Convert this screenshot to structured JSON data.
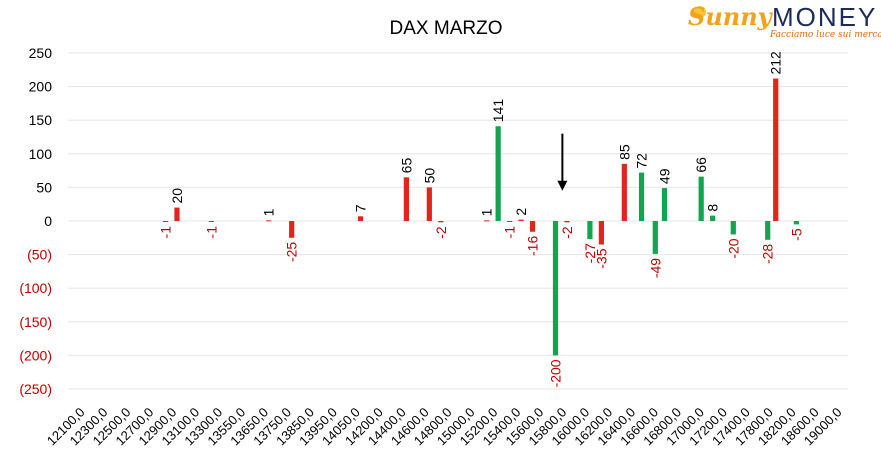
{
  "chart_data": {
    "type": "bar",
    "title": "DAX MARZO",
    "xlabel": "",
    "ylabel": "",
    "ylim": [
      -250,
      250
    ],
    "yticks": [
      250,
      200,
      150,
      100,
      50,
      0,
      -50,
      -100,
      -150,
      -200,
      -250
    ],
    "ytick_labels": [
      "250",
      "200",
      "150",
      "100",
      "50",
      "0",
      "(50)",
      "(100)",
      "(150)",
      "(200)",
      "(250)"
    ],
    "positive_tick_color": "#000000",
    "negative_tick_color": "#c00000",
    "grid": true,
    "legend": "none",
    "categories": [
      "12100,0",
      "12300,0",
      "12500,0",
      "12700,0",
      "12900,0",
      "13100,0",
      "13300,0",
      "13550,0",
      "13650,0",
      "13750,0",
      "13850,0",
      "13950,0",
      "14050,0",
      "14200,0",
      "14400,0",
      "14600,0",
      "14800,0",
      "15000,0",
      "15200,0",
      "15400,0",
      "15600,0",
      "15800,0",
      "16000,0",
      "16200,0",
      "16400,0",
      "16600,0",
      "16800,0",
      "17000,0",
      "17200,0",
      "17400,0",
      "17800,0",
      "18200,0",
      "18600,0",
      "19000,0"
    ],
    "bars": [
      {
        "slot": 4.25,
        "value": -1,
        "color": "red",
        "label": "-1"
      },
      {
        "slot": 4.75,
        "value": 20,
        "color": "red",
        "label": "20"
      },
      {
        "slot": 6.25,
        "value": -1,
        "color": "red",
        "label": "-1"
      },
      {
        "slot": 8.75,
        "value": 1,
        "color": "red",
        "label": "1"
      },
      {
        "slot": 9.75,
        "value": -25,
        "color": "red",
        "label": "-25"
      },
      {
        "slot": 12.75,
        "value": 7,
        "color": "red",
        "label": "7"
      },
      {
        "slot": 14.75,
        "value": 65,
        "color": "red",
        "label": "65"
      },
      {
        "slot": 15.75,
        "value": 50,
        "color": "red",
        "label": "50"
      },
      {
        "slot": 16.25,
        "value": -2,
        "color": "red",
        "label": "-2"
      },
      {
        "slot": 18.25,
        "value": 1,
        "color": "red",
        "label": "1"
      },
      {
        "slot": 18.75,
        "value": 141,
        "color": "green",
        "label": "141"
      },
      {
        "slot": 19.25,
        "value": -1,
        "color": "red",
        "label": "-1"
      },
      {
        "slot": 19.75,
        "value": 2,
        "color": "red",
        "label": "2"
      },
      {
        "slot": 20.25,
        "value": -16,
        "color": "red",
        "label": "-16"
      },
      {
        "slot": 21.25,
        "value": -200,
        "color": "green",
        "label": "-200"
      },
      {
        "slot": 21.75,
        "value": -2,
        "color": "red",
        "label": "-2"
      },
      {
        "slot": 22.75,
        "value": -27,
        "color": "green",
        "label": "-27"
      },
      {
        "slot": 23.25,
        "value": -35,
        "color": "red",
        "label": "-35"
      },
      {
        "slot": 24.25,
        "value": 85,
        "color": "red",
        "label": "85"
      },
      {
        "slot": 25.0,
        "value": 72,
        "color": "green",
        "label": "72"
      },
      {
        "slot": 25.6,
        "value": -49,
        "color": "green",
        "label": "-49"
      },
      {
        "slot": 26.0,
        "value": 49,
        "color": "green",
        "label": "49"
      },
      {
        "slot": 27.6,
        "value": 66,
        "color": "green",
        "label": "66"
      },
      {
        "slot": 28.1,
        "value": 8,
        "color": "green",
        "label": "8"
      },
      {
        "slot": 29.0,
        "value": -20,
        "color": "green",
        "label": "-20"
      },
      {
        "slot": 30.5,
        "value": -28,
        "color": "green",
        "label": "-28"
      },
      {
        "slot": 30.85,
        "value": 212,
        "color": "red",
        "label": "212"
      },
      {
        "slot": 31.75,
        "value": -5,
        "color": "green",
        "label": "-5"
      }
    ],
    "marker_arrow": {
      "slot": 21.55,
      "from": 130,
      "to": 45
    }
  },
  "colors": {
    "red": "#e3241b",
    "green": "#12a54f",
    "grid": "#e6e6e6",
    "text": "#000000",
    "neg_text": "#c00000"
  },
  "logo": {
    "brand_a": "Sunny",
    "brand_b": "MONEY",
    "tagline": "Facciamo luce sui mercati"
  }
}
